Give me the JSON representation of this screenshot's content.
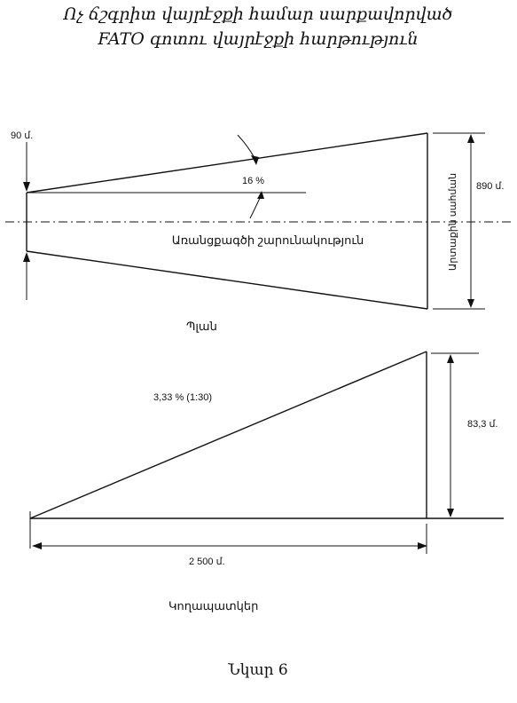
{
  "title": {
    "line1": "Ոչ ճշգրիտ վայրէջքի համար սարքավորված",
    "line2": "FATO  գոտու վայրէջքի հարթություն"
  },
  "plan": {
    "label_90": "90 մ.",
    "label_16": "16 %",
    "label_890": "890 մ.",
    "inner_edge": "Արտաքին սահման",
    "centerline": "Առանցքագծի շարունակություն",
    "caption": "Պլան"
  },
  "profile": {
    "slope_label": "3,33 %  (1:30)",
    "height_label": "83,3 մ.",
    "length_label": "2 500 մ.",
    "caption": "Կողապատկեր"
  },
  "figure_caption": "Նկար 6"
}
